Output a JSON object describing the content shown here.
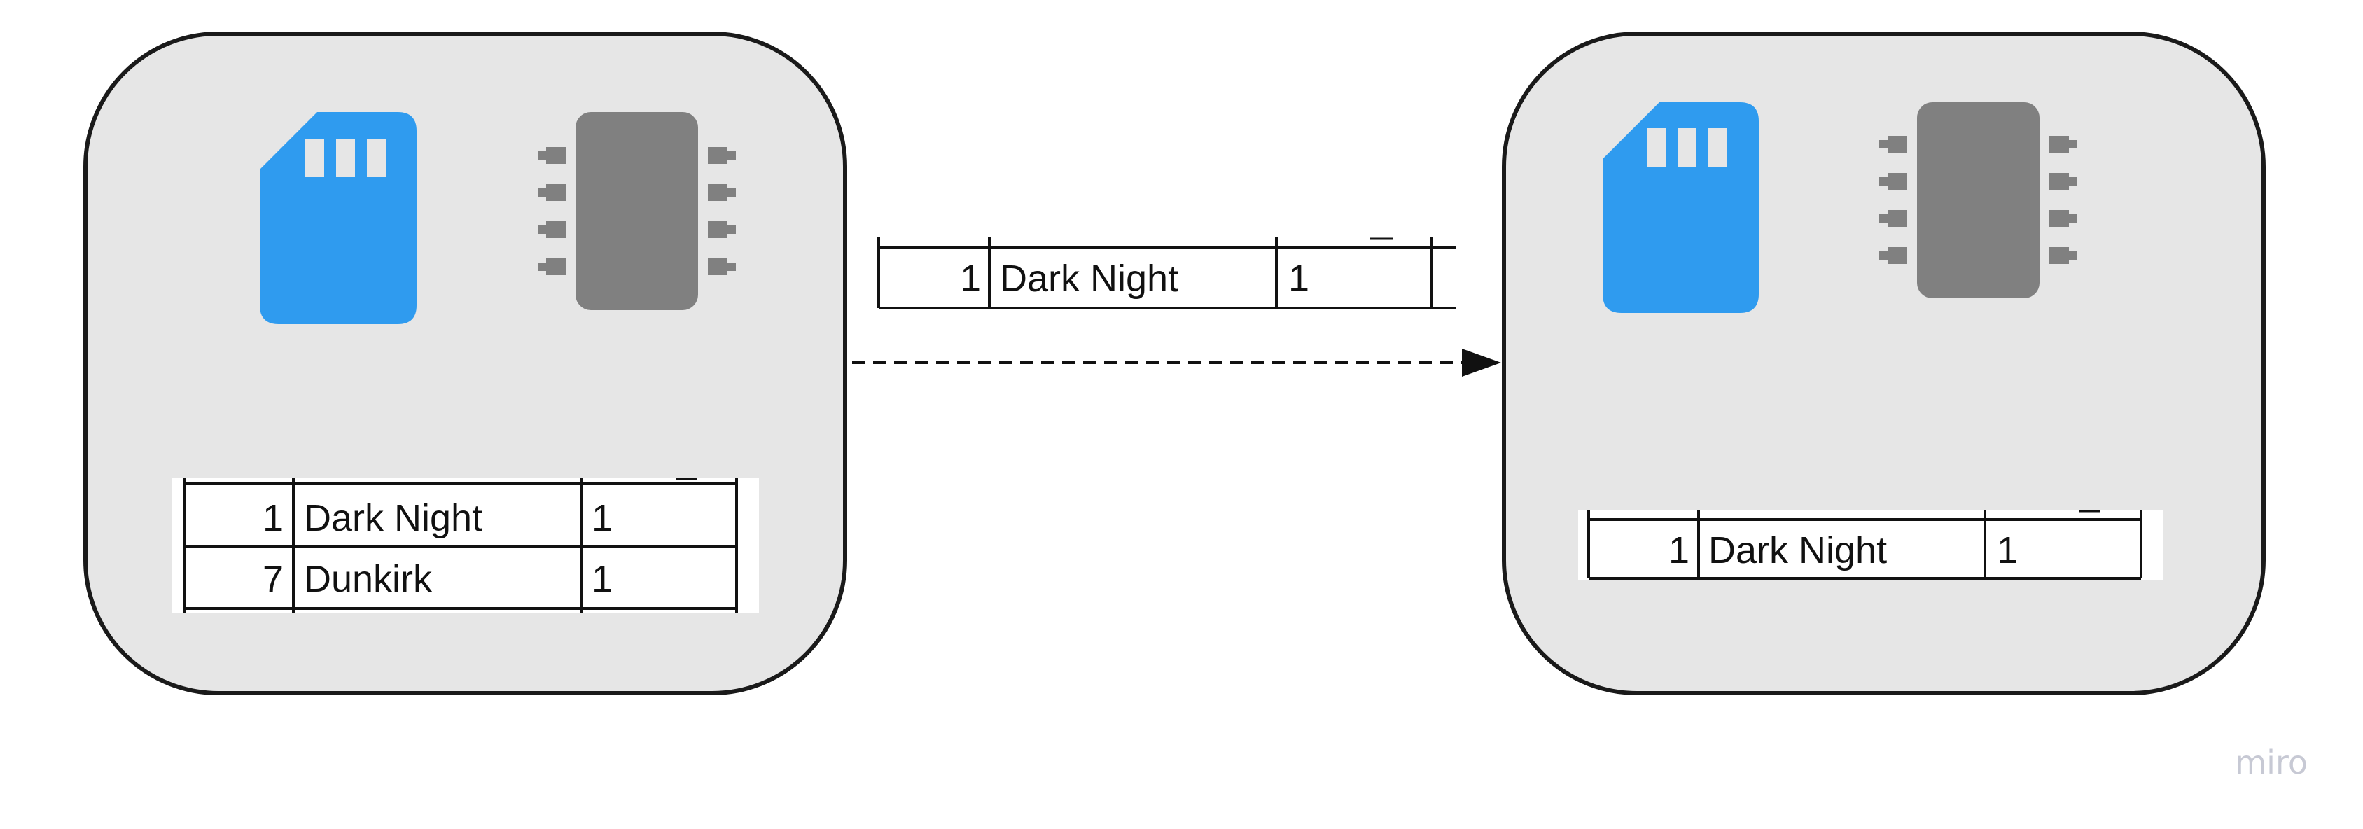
{
  "diagram": {
    "left_device": {
      "table_rows": [
        {
          "id": "1",
          "title": "Dark Night",
          "value": "1"
        },
        {
          "id": "7",
          "title": "Dunkirk",
          "value": "1"
        }
      ]
    },
    "transfer": {
      "table_rows": [
        {
          "id": "1",
          "title": "Dark Night",
          "value": "1"
        }
      ]
    },
    "right_device": {
      "table_rows": [
        {
          "id": "1",
          "title": "Dark Night",
          "value": "1"
        }
      ]
    },
    "colors": {
      "device_fill": "#e6e6e6",
      "device_stroke": "#1a1a1a",
      "sd_card": "#2f9bef",
      "chip": "#808080"
    }
  },
  "watermark": "miro"
}
